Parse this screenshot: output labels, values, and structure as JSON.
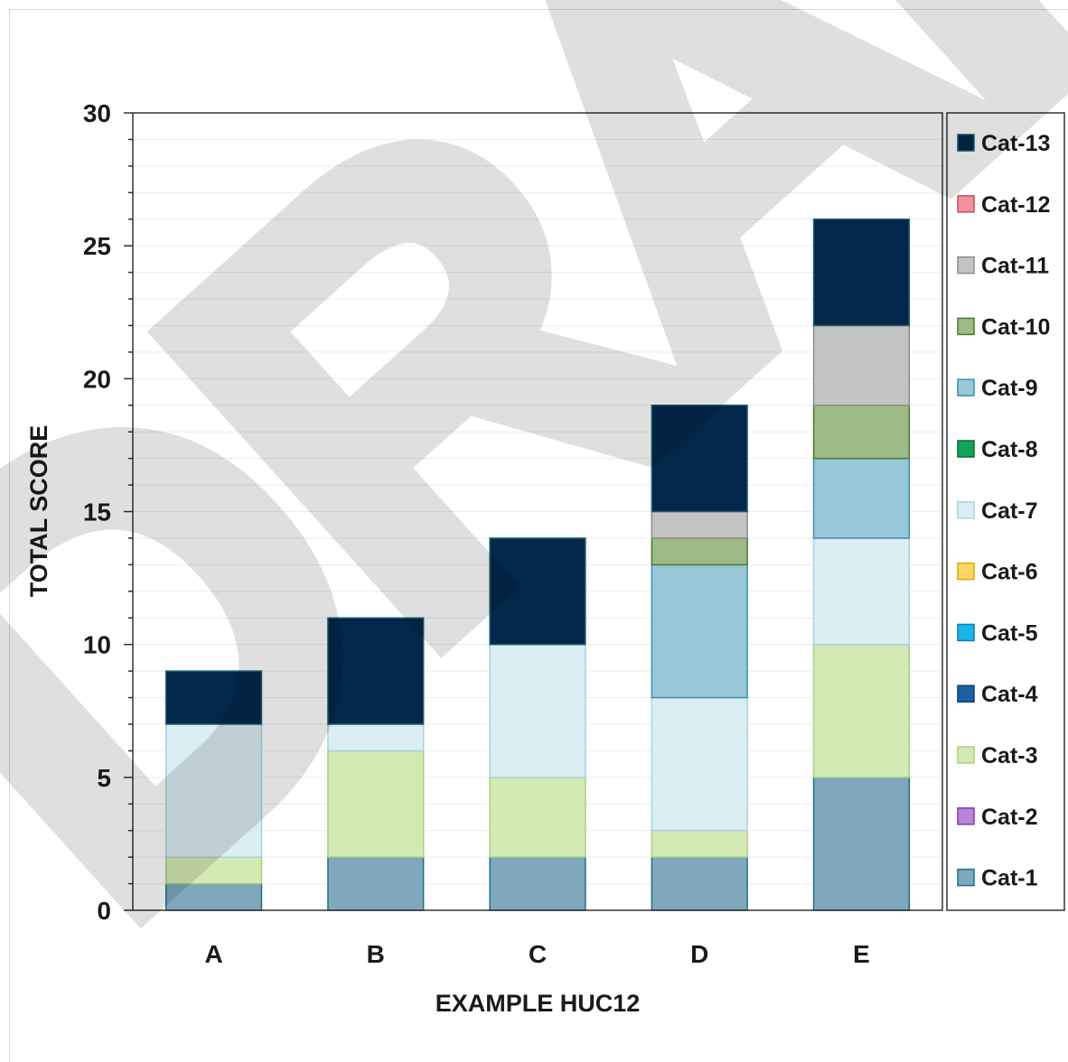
{
  "chart_data": {
    "type": "bar",
    "stacked": true,
    "title": "",
    "xlabel": "EXAMPLE HUC12",
    "ylabel": "TOTAL SCORE",
    "ylim": [
      0,
      30
    ],
    "yticks": [
      0,
      5,
      10,
      15,
      20,
      25,
      30
    ],
    "grid": true,
    "legend_position": "right",
    "watermark": "DRAFT",
    "categories": [
      "A",
      "B",
      "C",
      "D",
      "E"
    ],
    "series": [
      {
        "name": "Cat-1",
        "color": "#7fa8bd",
        "values": [
          1,
          2,
          2,
          2,
          5
        ]
      },
      {
        "name": "Cat-2",
        "color": "#b985db",
        "values": [
          0,
          0,
          0,
          0,
          0
        ]
      },
      {
        "name": "Cat-3",
        "color": "#d4eab5",
        "values": [
          1,
          4,
          3,
          1,
          5
        ]
      },
      {
        "name": "Cat-4",
        "color": "#1a5fa6",
        "values": [
          0,
          0,
          0,
          0,
          0
        ]
      },
      {
        "name": "Cat-5",
        "color": "#19b4ea",
        "values": [
          0,
          0,
          0,
          0,
          0
        ]
      },
      {
        "name": "Cat-6",
        "color": "#ffd56a",
        "values": [
          0,
          0,
          0,
          0,
          0
        ]
      },
      {
        "name": "Cat-7",
        "color": "#dbeef4",
        "values": [
          5,
          1,
          5,
          5,
          4
        ]
      },
      {
        "name": "Cat-8",
        "color": "#12a456",
        "values": [
          0,
          0,
          0,
          0,
          0
        ]
      },
      {
        "name": "Cat-9",
        "color": "#98c7d9",
        "values": [
          0,
          0,
          0,
          5,
          3
        ]
      },
      {
        "name": "Cat-10",
        "color": "#9cbb86",
        "values": [
          0,
          0,
          0,
          1,
          2
        ]
      },
      {
        "name": "Cat-11",
        "color": "#c4c4c4",
        "values": [
          0,
          0,
          0,
          1,
          3
        ]
      },
      {
        "name": "Cat-12",
        "color": "#f4909c",
        "values": [
          0,
          0,
          0,
          0,
          0
        ]
      },
      {
        "name": "Cat-13",
        "color": "#03274b",
        "values": [
          2,
          4,
          4,
          4,
          4
        ]
      }
    ],
    "stroke_colors": {
      "Cat-1": "#1f6f8b",
      "Cat-2": "#7b3fa6",
      "Cat-3": "#a9d07d",
      "Cat-4": "#0d3c73",
      "Cat-5": "#0d7fb0",
      "Cat-6": "#e0a800",
      "Cat-7": "#a8d3e0",
      "Cat-8": "#0a6b37",
      "Cat-9": "#3d8fb0",
      "Cat-10": "#4d7a2f",
      "Cat-11": "#8c8c8c",
      "Cat-12": "#c9505f",
      "Cat-13": "#1f5f6e"
    }
  }
}
